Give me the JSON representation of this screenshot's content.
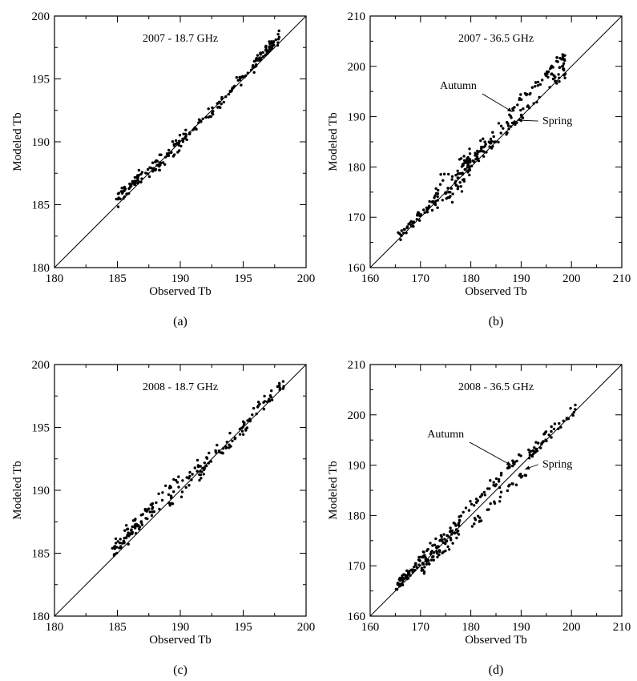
{
  "chart_data": [
    {
      "type": "scatter",
      "title": "2007 - 18.7 GHz",
      "caption": "(a)",
      "xlabel": "Observed Tb",
      "ylabel": "Modeled Tb",
      "xlim": [
        180,
        200
      ],
      "ylim": [
        180,
        200
      ],
      "xticks": [
        "180",
        "185",
        "190",
        "195",
        "200"
      ],
      "yticks": [
        "180",
        "185",
        "190",
        "195",
        "200"
      ],
      "reference_line": "y = x",
      "annotations": [],
      "segments": [
        {
          "x0": 184.8,
          "x1": 187.5,
          "offset": 0.4,
          "spread": 0.28,
          "n": 55
        },
        {
          "x0": 187.5,
          "x1": 190.5,
          "offset": 0.0,
          "spread": 0.3,
          "n": 60
        },
        {
          "x0": 190.5,
          "x1": 194.0,
          "offset": -0.1,
          "spread": 0.2,
          "n": 35
        },
        {
          "x0": 194.0,
          "x1": 197.5,
          "offset": 0.2,
          "spread": 0.22,
          "n": 45
        },
        {
          "x0": 196.0,
          "x1": 197.9,
          "offset": 0.5,
          "spread": 0.25,
          "n": 35
        }
      ]
    },
    {
      "type": "scatter",
      "title": "2007 - 36.5 GHz",
      "caption": "(b)",
      "xlabel": "Observed Tb",
      "ylabel": "Modeled Tb",
      "xlim": [
        160,
        210
      ],
      "ylim": [
        160,
        210
      ],
      "xticks": [
        "160",
        "170",
        "180",
        "190",
        "200",
        "210"
      ],
      "yticks": [
        "160",
        "170",
        "180",
        "190",
        "200",
        "210"
      ],
      "reference_line": "y = x",
      "annotations": [
        {
          "text": "Autumn",
          "label_x": 177.5,
          "label_y": 195.5,
          "arrow_to_x": 188.2,
          "arrow_to_y": 191.0
        },
        {
          "text": "Spring",
          "label_x": 197.2,
          "label_y": 188.5,
          "arrow_to_x": 189.3,
          "arrow_to_y": 189.3
        }
      ],
      "segments": [
        {
          "x0": 165.5,
          "x1": 172.0,
          "offset": 0.5,
          "spread": 0.55,
          "n": 45
        },
        {
          "x0": 172.0,
          "x1": 180.0,
          "offset": 0.8,
          "spread": 1.6,
          "n": 80
        },
        {
          "x0": 178.0,
          "x1": 188.5,
          "offset": 1.5,
          "spread": 0.9,
          "n": 45
        },
        {
          "x0": 188.0,
          "x1": 199.0,
          "offset": 3.5,
          "spread": 0.5,
          "n": 40
        },
        {
          "x0": 178.0,
          "x1": 199.0,
          "offset": 0.2,
          "spread": 0.5,
          "n": 50
        },
        {
          "x0": 196.0,
          "x1": 199.0,
          "offset": 1.8,
          "spread": 1.3,
          "n": 20
        }
      ]
    },
    {
      "type": "scatter",
      "title": "2008 - 18.7 GHz",
      "caption": "(c)",
      "xlabel": "Observed Tb",
      "ylabel": "Modeled Tb",
      "xlim": [
        180,
        200
      ],
      "ylim": [
        180,
        200
      ],
      "xticks": [
        "180",
        "185",
        "190",
        "195",
        "200"
      ],
      "yticks": [
        "180",
        "185",
        "190",
        "195",
        "200"
      ],
      "reference_line": "y = x",
      "annotations": [],
      "segments": [
        {
          "x0": 184.6,
          "x1": 187.0,
          "offset": 0.6,
          "spread": 0.35,
          "n": 60
        },
        {
          "x0": 187.0,
          "x1": 190.0,
          "offset": 0.7,
          "spread": 0.45,
          "n": 35
        },
        {
          "x0": 189.0,
          "x1": 192.0,
          "offset": 0.0,
          "spread": 0.45,
          "n": 35
        },
        {
          "x0": 192.0,
          "x1": 195.5,
          "offset": -0.1,
          "spread": 0.35,
          "n": 40
        },
        {
          "x0": 195.5,
          "x1": 198.3,
          "offset": 0.2,
          "spread": 0.3,
          "n": 30
        }
      ]
    },
    {
      "type": "scatter",
      "title": "2008 - 36.5 GHz",
      "caption": "(d)",
      "xlabel": "Observed Tb",
      "ylabel": "Modeled Tb",
      "xlim": [
        160,
        210
      ],
      "ylim": [
        160,
        210
      ],
      "xticks": [
        "160",
        "170",
        "180",
        "190",
        "200",
        "210"
      ],
      "yticks": [
        "160",
        "170",
        "180",
        "190",
        "200",
        "210"
      ],
      "reference_line": "y = x",
      "annotations": [
        {
          "text": "Autumn",
          "label_x": 175.0,
          "label_y": 195.5,
          "arrow_to_x": 188.0,
          "arrow_to_y": 190.0
        },
        {
          "text": "Spring",
          "label_x": 197.2,
          "label_y": 189.5,
          "arrow_to_x": 190.8,
          "arrow_to_y": 189.2
        }
      ],
      "segments": [
        {
          "x0": 165.0,
          "x1": 170.0,
          "offset": 0.8,
          "spread": 0.6,
          "n": 50
        },
        {
          "x0": 170.0,
          "x1": 178.0,
          "offset": 0.0,
          "spread": 1.2,
          "n": 90
        },
        {
          "x0": 177.0,
          "x1": 190.0,
          "offset": 1.8,
          "spread": 0.5,
          "n": 45
        },
        {
          "x0": 180.0,
          "x1": 191.0,
          "offset": -2.2,
          "spread": 0.8,
          "n": 30
        },
        {
          "x0": 191.0,
          "x1": 201.0,
          "offset": 0.6,
          "spread": 0.7,
          "n": 45
        }
      ]
    }
  ]
}
